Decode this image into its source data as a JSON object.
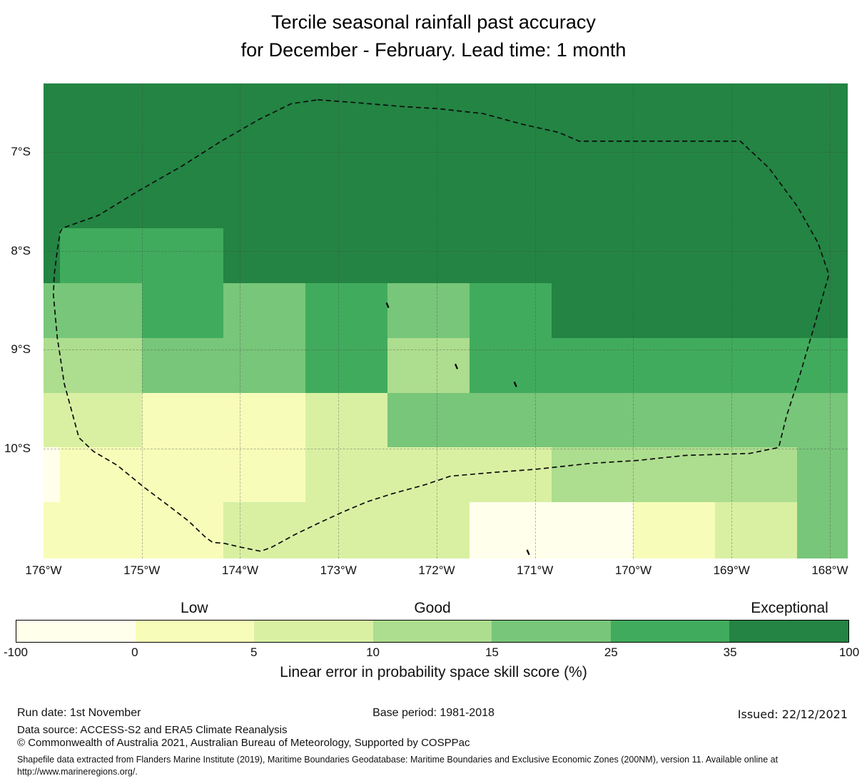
{
  "title": {
    "line1": "Tercile seasonal rainfall past accuracy",
    "line2": "for December - February. Lead time: 1 month"
  },
  "axes": {
    "y_ticks": [
      {
        "label": "7°S",
        "lat_s": 7
      },
      {
        "label": "8°S",
        "lat_s": 8
      },
      {
        "label": "9°S",
        "lat_s": 9
      },
      {
        "label": "10°S",
        "lat_s": 10
      }
    ],
    "x_ticks": [
      {
        "label": "176°W",
        "lon_w": 176
      },
      {
        "label": "175°W",
        "lon_w": 175
      },
      {
        "label": "174°W",
        "lon_w": 174
      },
      {
        "label": "173°W",
        "lon_w": 173
      },
      {
        "label": "172°W",
        "lon_w": 172
      },
      {
        "label": "171°W",
        "lon_w": 171
      },
      {
        "label": "170°W",
        "lon_w": 170
      },
      {
        "label": "169°W",
        "lon_w": 169
      },
      {
        "label": "168°W",
        "lon_w": 168
      }
    ]
  },
  "legend": {
    "categories": [
      {
        "label": "Low",
        "segment_index": 1
      },
      {
        "label": "Good",
        "segment_index": 3
      },
      {
        "label": "Exceptional",
        "segment_index": 6
      }
    ],
    "tick_labels": [
      "-100",
      "0",
      "5",
      "10",
      "15",
      "25",
      "35",
      "100"
    ],
    "caption": "Linear error in probability space skill score (%)"
  },
  "footer": {
    "run_date": "Run date: 1st November",
    "base_period": "Base period: 1981-2018",
    "issued": "Issued: 22/12/2021",
    "data_source": "Data source: ACCESS-S2 and ERA5 Climate Reanalysis",
    "copyright": "© Commonwealth of Australia 2021, Australian Bureau of Meteorology, Supported by COSPPac",
    "shapefile_line1": "Shapefile data extracted from Flanders Marine Institute (2019), Maritime Boundaries Geodatabase: Maritime Boundaries and Exclusive Economic Zones (200NM), version 11. Available online at",
    "shapefile_line2": "http://www.marineregions.org/."
  },
  "chart_data": {
    "type": "heatmap",
    "title": "Tercile seasonal rainfall past accuracy for December - February. Lead time: 1 month",
    "colorbar_label": "Linear error in probability space skill score (%)",
    "legend_position": "bottom",
    "grid_on": true,
    "bins": [
      {
        "range": [
          -100,
          0
        ],
        "class": "W",
        "color": "#ffffeb",
        "category": ""
      },
      {
        "range": [
          0,
          5
        ],
        "class": "Y1",
        "color": "#f7fcb9",
        "category": "Low"
      },
      {
        "range": [
          5,
          10
        ],
        "class": "Y2",
        "color": "#d9f0a3",
        "category": ""
      },
      {
        "range": [
          10,
          15
        ],
        "class": "G1",
        "color": "#addd8e",
        "category": "Good"
      },
      {
        "range": [
          15,
          25
        ],
        "class": "G2",
        "color": "#78c679",
        "category": ""
      },
      {
        "range": [
          25,
          35
        ],
        "class": "G3",
        "color": "#41ab5d",
        "category": ""
      },
      {
        "range": [
          35,
          100
        ],
        "class": "G4",
        "color": "#238443",
        "category": "Exceptional"
      }
    ],
    "map_bounds": {
      "lon_w": [
        176.0,
        167.818
      ],
      "lat_s": [
        6.305,
        11.113
      ]
    },
    "grid": {
      "col_edges_lon_w": [
        176.0,
        175.833,
        175.0,
        174.167,
        173.333,
        172.5,
        171.667,
        170.833,
        170.0,
        169.167,
        168.333,
        167.818
      ],
      "row_edges_lat_s": [
        6.305,
        6.66,
        7.215,
        7.77,
        8.325,
        8.88,
        9.435,
        9.99,
        10.545,
        11.113
      ],
      "cell_classes": [
        [
          "G4",
          "G4",
          "G4",
          "G4",
          "G4",
          "G4",
          "G4",
          "G4",
          "G4",
          "G4",
          "G4"
        ],
        [
          "G4",
          "G4",
          "G4",
          "G4",
          "G4",
          "G4",
          "G4",
          "G4",
          "G4",
          "G4",
          "G4"
        ],
        [
          "G4",
          "G4",
          "G4",
          "G4",
          "G4",
          "G4",
          "G4",
          "G4",
          "G4",
          "G4",
          "G4"
        ],
        [
          "G4",
          "G3",
          "G3",
          "G4",
          "G4",
          "G4",
          "G4",
          "G4",
          "G4",
          "G4",
          "G4"
        ],
        [
          "G2",
          "G2",
          "G3",
          "G2",
          "G3",
          "G2",
          "G3",
          "G4",
          "G4",
          "G4",
          "G4"
        ],
        [
          "G1",
          "G1",
          "G2",
          "G2",
          "G3",
          "G1",
          "G3",
          "G3",
          "G3",
          "G3",
          "G3"
        ],
        [
          "Y2",
          "Y2",
          "Y1",
          "Y1",
          "Y2",
          "G2",
          "G2",
          "G2",
          "G2",
          "G2",
          "G2"
        ],
        [
          "W",
          "Y1",
          "Y1",
          "Y1",
          "Y2",
          "Y2",
          "Y2",
          "G1",
          "G1",
          "G1",
          "G2"
        ],
        [
          "Y1",
          "Y1",
          "Y1",
          "Y2",
          "Y2",
          "Y2",
          "W",
          "W",
          "Y1",
          "Y2",
          "G2"
        ]
      ]
    },
    "islands": [
      {
        "lon_w": 172.5,
        "lat_s": 8.55
      },
      {
        "lon_w": 171.8,
        "lat_s": 9.17
      },
      {
        "lon_w": 171.2,
        "lat_s": 9.35
      },
      {
        "lon_w": 171.07,
        "lat_s": 11.05
      }
    ],
    "eez_boundary_lonlat_w_s": [
      [
        173.21,
        6.47
      ],
      [
        172.81,
        6.5
      ],
      [
        172.33,
        6.54
      ],
      [
        171.99,
        6.56
      ],
      [
        171.53,
        6.61
      ],
      [
        171.12,
        6.72
      ],
      [
        170.76,
        6.8
      ],
      [
        170.55,
        6.89
      ],
      [
        168.91,
        6.89
      ],
      [
        168.62,
        7.16
      ],
      [
        168.33,
        7.55
      ],
      [
        168.12,
        7.92
      ],
      [
        168.01,
        8.24
      ],
      [
        168.17,
        8.8
      ],
      [
        168.3,
        9.24
      ],
      [
        168.44,
        9.67
      ],
      [
        168.52,
        9.99
      ],
      [
        168.82,
        10.05
      ],
      [
        169.47,
        10.07
      ],
      [
        169.95,
        10.12
      ],
      [
        170.43,
        10.15
      ],
      [
        170.99,
        10.21
      ],
      [
        171.4,
        10.24
      ],
      [
        171.86,
        10.28
      ],
      [
        172.13,
        10.37
      ],
      [
        172.46,
        10.46
      ],
      [
        172.71,
        10.54
      ],
      [
        172.95,
        10.64
      ],
      [
        173.19,
        10.75
      ],
      [
        173.44,
        10.87
      ],
      [
        173.68,
        11.0
      ],
      [
        173.79,
        11.04
      ],
      [
        173.99,
        11.0
      ],
      [
        174.16,
        10.96
      ],
      [
        174.28,
        10.95
      ],
      [
        174.35,
        10.9
      ],
      [
        174.53,
        10.73
      ],
      [
        174.74,
        10.57
      ],
      [
        174.98,
        10.39
      ],
      [
        175.25,
        10.17
      ],
      [
        175.49,
        10.03
      ],
      [
        175.64,
        9.89
      ],
      [
        175.79,
        9.34
      ],
      [
        175.83,
        9.07
      ],
      [
        175.86,
        8.88
      ],
      [
        175.88,
        8.66
      ],
      [
        175.9,
        8.44
      ],
      [
        175.89,
        8.23
      ],
      [
        175.86,
        7.99
      ],
      [
        175.83,
        7.81
      ],
      [
        175.81,
        7.77
      ],
      [
        175.44,
        7.64
      ],
      [
        175.03,
        7.39
      ],
      [
        174.59,
        7.14
      ],
      [
        174.21,
        6.9
      ],
      [
        173.81,
        6.67
      ],
      [
        173.48,
        6.51
      ]
    ]
  }
}
